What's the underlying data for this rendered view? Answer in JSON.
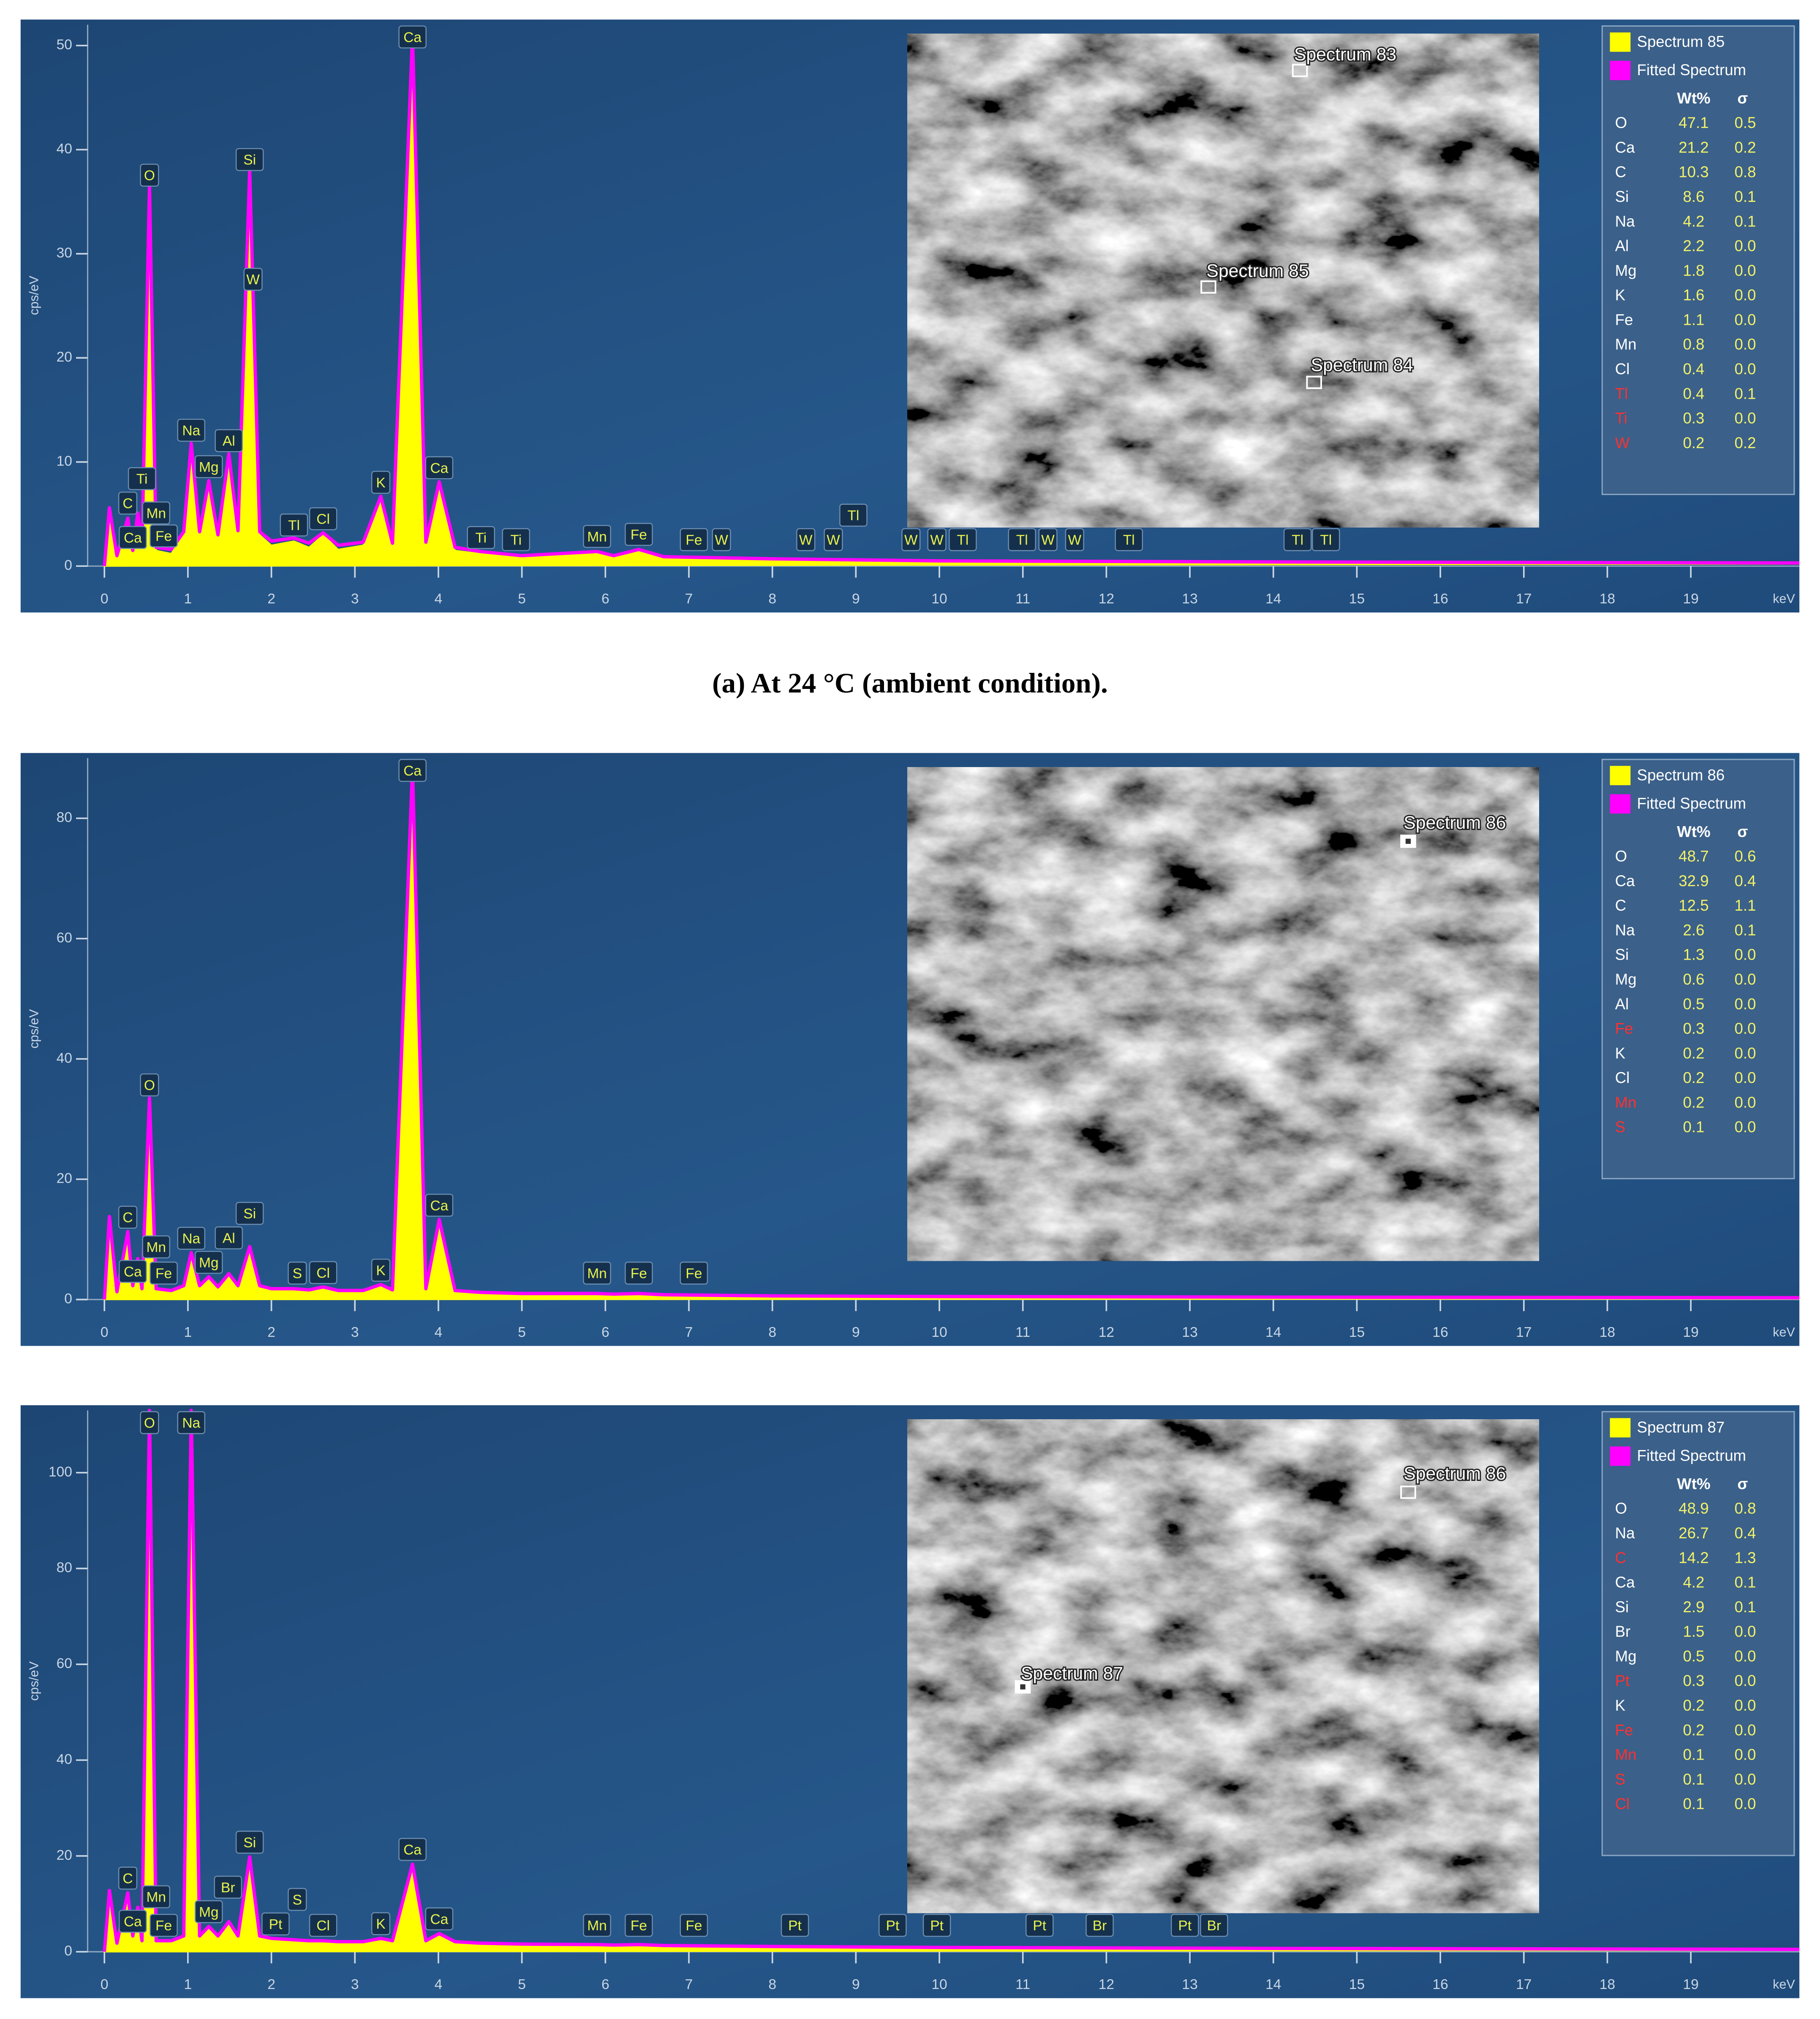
{
  "caption": "(a) At 24 °C (ambient condition).",
  "chart_data": [
    {
      "type": "line",
      "xlabel": "keV",
      "ylabel": "cps/eV",
      "xlim": [
        0,
        20.3
      ],
      "xticks": [
        0,
        1,
        2,
        3,
        4,
        5,
        6,
        7,
        8,
        9,
        10,
        11,
        12,
        13,
        14,
        15,
        16,
        17,
        18,
        19
      ],
      "ylim": [
        0,
        52
      ],
      "yticks": [
        0,
        10,
        20,
        30,
        40,
        50
      ],
      "grid": false,
      "x": [
        0,
        0.06,
        0.15,
        0.28,
        0.34,
        0.4,
        0.45,
        0.54,
        0.62,
        0.8,
        0.95,
        1.04,
        1.14,
        1.25,
        1.36,
        1.49,
        1.6,
        1.74,
        1.86,
        2.0,
        2.27,
        2.45,
        2.62,
        2.8,
        3.1,
        3.31,
        3.45,
        3.69,
        3.85,
        4.01,
        4.2,
        4.5,
        5.0,
        5.9,
        6.1,
        6.4,
        6.7,
        8,
        10,
        14,
        20.3
      ],
      "series": [
        {
          "name": "Spectrum 85",
          "color": "#ffff00",
          "mark": "area",
          "values": [
            0,
            5.5,
            0.8,
            4.5,
            1.2,
            5,
            1.5,
            36,
            1.5,
            1.2,
            3,
            11.5,
            3,
            8,
            2.5,
            10.5,
            3,
            37.5,
            3,
            2,
            2.4,
            1.8,
            3,
            1.6,
            2,
            6.5,
            1.8,
            51,
            2,
            7.9,
            1.5,
            1.2,
            0.8,
            1.3,
            0.8,
            1.5,
            0.7,
            0.5,
            0.4,
            0.3,
            0.2
          ]
        },
        {
          "name": "Fitted Spectrum",
          "color": "#ff00ff",
          "mark": "line",
          "values": [
            0,
            5.6,
            1,
            4.6,
            1.5,
            5.1,
            1.8,
            36.5,
            1.8,
            1.6,
            3.3,
            11.8,
            3.3,
            8.2,
            3,
            10.8,
            3.4,
            38,
            3.3,
            2.4,
            2.7,
            2.2,
            3.2,
            2,
            2.3,
            6.7,
            2.2,
            51,
            2.3,
            8.1,
            1.8,
            1.4,
            1,
            1.4,
            1,
            1.6,
            0.9,
            0.7,
            0.5,
            0.4,
            0.3
          ]
        }
      ],
      "peak_labels": [
        {
          "label": "C",
          "x": 0.28
        },
        {
          "label": "Ca",
          "x": 0.34
        },
        {
          "label": "Ti",
          "x": 0.45
        },
        {
          "label": "O",
          "x": 0.54
        },
        {
          "label": "Mn",
          "x": 0.62
        },
        {
          "label": "Fe",
          "x": 0.71
        },
        {
          "label": "Na",
          "x": 1.04
        },
        {
          "label": "Mg",
          "x": 1.25
        },
        {
          "label": "Al",
          "x": 1.49
        },
        {
          "label": "Si",
          "x": 1.74
        },
        {
          "label": "W",
          "x": 1.78
        },
        {
          "label": "Tl",
          "x": 2.27
        },
        {
          "label": "Cl",
          "x": 2.62
        },
        {
          "label": "K",
          "x": 3.31
        },
        {
          "label": "Ca",
          "x": 3.69
        },
        {
          "label": "Ca",
          "x": 4.01
        },
        {
          "label": "Ti",
          "x": 4.51
        },
        {
          "label": "Ti",
          "x": 4.93
        },
        {
          "label": "Mn",
          "x": 5.9
        },
        {
          "label": "Fe",
          "x": 6.4
        },
        {
          "label": "Fe",
          "x": 7.06
        },
        {
          "label": "W",
          "x": 7.39
        },
        {
          "label": "W",
          "x": 8.4
        },
        {
          "label": "W",
          "x": 8.73
        },
        {
          "label": "Tl",
          "x": 8.97
        },
        {
          "label": "W",
          "x": 9.66
        },
        {
          "label": "W",
          "x": 9.97
        },
        {
          "label": "Tl",
          "x": 10.28
        },
        {
          "label": "Tl",
          "x": 10.99
        },
        {
          "label": "W",
          "x": 11.3
        },
        {
          "label": "W",
          "x": 11.62
        },
        {
          "label": "Tl",
          "x": 12.27
        },
        {
          "label": "Tl",
          "x": 14.29
        },
        {
          "label": "Tl",
          "x": 14.63
        }
      ],
      "image_labels": [
        "Spectrum 83",
        "Spectrum 85",
        "Spectrum 84"
      ],
      "table": {
        "columns": [
          "Wt%",
          "σ"
        ],
        "rows": [
          {
            "element": "O",
            "wt": "47.1",
            "sigma": "0.5",
            "color": "#ffffff"
          },
          {
            "element": "Ca",
            "wt": "21.2",
            "sigma": "0.2",
            "color": "#ffffff"
          },
          {
            "element": "C",
            "wt": "10.3",
            "sigma": "0.8",
            "color": "#ffffff"
          },
          {
            "element": "Si",
            "wt": "8.6",
            "sigma": "0.1",
            "color": "#ffffff"
          },
          {
            "element": "Na",
            "wt": "4.2",
            "sigma": "0.1",
            "color": "#ffffff"
          },
          {
            "element": "Al",
            "wt": "2.2",
            "sigma": "0.0",
            "color": "#ffffff"
          },
          {
            "element": "Mg",
            "wt": "1.8",
            "sigma": "0.0",
            "color": "#ffffff"
          },
          {
            "element": "K",
            "wt": "1.6",
            "sigma": "0.0",
            "color": "#ffffff"
          },
          {
            "element": "Fe",
            "wt": "1.1",
            "sigma": "0.0",
            "color": "#ffffff"
          },
          {
            "element": "Mn",
            "wt": "0.8",
            "sigma": "0.0",
            "color": "#ffffff"
          },
          {
            "element": "Cl",
            "wt": "0.4",
            "sigma": "0.0",
            "color": "#ffffff"
          },
          {
            "element": "Tl",
            "wt": "0.4",
            "sigma": "0.1",
            "color": "#ff3030"
          },
          {
            "element": "Ti",
            "wt": "0.3",
            "sigma": "0.0",
            "color": "#ff3030"
          },
          {
            "element": "W",
            "wt": "0.2",
            "sigma": "0.2",
            "color": "#ff3030"
          }
        ]
      }
    },
    {
      "type": "line",
      "xlabel": "keV",
      "ylabel": "cps/eV",
      "xlim": [
        0,
        20.3
      ],
      "xticks": [
        0,
        1,
        2,
        3,
        4,
        5,
        6,
        7,
        8,
        9,
        10,
        11,
        12,
        13,
        14,
        15,
        16,
        17,
        18,
        19
      ],
      "ylim": [
        0,
        90
      ],
      "yticks": [
        0,
        20,
        40,
        60,
        80
      ],
      "grid": false,
      "x": [
        0,
        0.06,
        0.15,
        0.28,
        0.34,
        0.4,
        0.45,
        0.54,
        0.62,
        0.8,
        0.95,
        1.04,
        1.14,
        1.25,
        1.36,
        1.49,
        1.6,
        1.74,
        1.86,
        2.0,
        2.27,
        2.45,
        2.62,
        2.8,
        3.1,
        3.31,
        3.45,
        3.69,
        3.85,
        4.01,
        4.2,
        4.5,
        5.0,
        5.9,
        6.1,
        6.4,
        6.7,
        8,
        10,
        14,
        20.3
      ],
      "series": [
        {
          "name": "Spectrum 86",
          "color": "#ffff00",
          "mark": "area",
          "values": [
            0,
            13.5,
            1,
            11,
            2,
            6.5,
            1.5,
            33,
            1.5,
            1.2,
            2,
            7.5,
            2,
            3.5,
            1.8,
            4,
            2,
            8.5,
            2,
            1.5,
            1.5,
            1.3,
            1.8,
            1.2,
            1.2,
            2.2,
            1.3,
            88,
            1.5,
            13,
            1.2,
            0.9,
            0.7,
            0.8,
            0.6,
            0.8,
            0.5,
            0.4,
            0.3,
            0.2,
            0.1
          ]
        },
        {
          "name": "Fitted Spectrum",
          "color": "#ff00ff",
          "mark": "line",
          "values": [
            0,
            13.8,
            1.3,
            11.3,
            2.3,
            6.8,
            1.8,
            33.5,
            1.8,
            1.5,
            2.3,
            7.8,
            2.3,
            3.8,
            2.1,
            4.3,
            2.3,
            8.8,
            2.3,
            1.8,
            1.8,
            1.6,
            2.1,
            1.5,
            1.5,
            2.5,
            1.6,
            88.5,
            1.8,
            13.3,
            1.5,
            1.2,
            1,
            1,
            0.9,
            1,
            0.8,
            0.6,
            0.5,
            0.4,
            0.3
          ]
        }
      ],
      "peak_labels": [
        {
          "label": "C",
          "x": 0.28
        },
        {
          "label": "Ca",
          "x": 0.34
        },
        {
          "label": "O",
          "x": 0.54
        },
        {
          "label": "Mn",
          "x": 0.62
        },
        {
          "label": "Fe",
          "x": 0.71
        },
        {
          "label": "Na",
          "x": 1.04
        },
        {
          "label": "Mg",
          "x": 1.25
        },
        {
          "label": "Al",
          "x": 1.49
        },
        {
          "label": "Si",
          "x": 1.74
        },
        {
          "label": "S",
          "x": 2.31
        },
        {
          "label": "Cl",
          "x": 2.62
        },
        {
          "label": "K",
          "x": 3.31
        },
        {
          "label": "Ca",
          "x": 3.69
        },
        {
          "label": "Ca",
          "x": 4.01
        },
        {
          "label": "Mn",
          "x": 5.9
        },
        {
          "label": "Fe",
          "x": 6.4
        },
        {
          "label": "Fe",
          "x": 7.06
        }
      ],
      "image_labels": [
        "Spectrum 86"
      ],
      "table": {
        "columns": [
          "Wt%",
          "σ"
        ],
        "rows": [
          {
            "element": "O",
            "wt": "48.7",
            "sigma": "0.6",
            "color": "#ffffff"
          },
          {
            "element": "Ca",
            "wt": "32.9",
            "sigma": "0.4",
            "color": "#ffffff"
          },
          {
            "element": "C",
            "wt": "12.5",
            "sigma": "1.1",
            "color": "#ffffff"
          },
          {
            "element": "Na",
            "wt": "2.6",
            "sigma": "0.1",
            "color": "#ffffff"
          },
          {
            "element": "Si",
            "wt": "1.3",
            "sigma": "0.0",
            "color": "#ffffff"
          },
          {
            "element": "Mg",
            "wt": "0.6",
            "sigma": "0.0",
            "color": "#ffffff"
          },
          {
            "element": "Al",
            "wt": "0.5",
            "sigma": "0.0",
            "color": "#ffffff"
          },
          {
            "element": "Fe",
            "wt": "0.3",
            "sigma": "0.0",
            "color": "#ff3030"
          },
          {
            "element": "K",
            "wt": "0.2",
            "sigma": "0.0",
            "color": "#ffffff"
          },
          {
            "element": "Cl",
            "wt": "0.2",
            "sigma": "0.0",
            "color": "#ffffff"
          },
          {
            "element": "Mn",
            "wt": "0.2",
            "sigma": "0.0",
            "color": "#ff3030"
          },
          {
            "element": "S",
            "wt": "0.1",
            "sigma": "0.0",
            "color": "#ff3030"
          }
        ]
      }
    },
    {
      "type": "line",
      "xlabel": "keV",
      "ylabel": "cps/eV",
      "xlim": [
        0,
        20.3
      ],
      "xticks": [
        0,
        1,
        2,
        3,
        4,
        5,
        6,
        7,
        8,
        9,
        10,
        11,
        12,
        13,
        14,
        15,
        16,
        17,
        18,
        19
      ],
      "ylim": [
        0,
        113
      ],
      "yticks": [
        0,
        20,
        40,
        60,
        80,
        100
      ],
      "grid": false,
      "x": [
        0,
        0.06,
        0.15,
        0.28,
        0.34,
        0.4,
        0.45,
        0.54,
        0.62,
        0.8,
        0.95,
        1.04,
        1.14,
        1.25,
        1.36,
        1.49,
        1.6,
        1.74,
        1.86,
        2.0,
        2.27,
        2.45,
        2.62,
        2.8,
        3.1,
        3.31,
        3.45,
        3.69,
        3.85,
        4.01,
        4.2,
        4.5,
        5.0,
        5.9,
        6.1,
        6.4,
        6.7,
        8,
        10,
        14,
        20.3
      ],
      "series": [
        {
          "name": "Spectrum 87",
          "color": "#ffff00",
          "mark": "area",
          "values": [
            0,
            12.5,
            1.5,
            12,
            3,
            9,
            2,
            113,
            2,
            2,
            3,
            113,
            3,
            5,
            3,
            6,
            3,
            19.5,
            3,
            2.5,
            2.2,
            2,
            2,
            1.8,
            1.8,
            2.5,
            2,
            18,
            2,
            3.5,
            1.8,
            1.5,
            1.3,
            1.2,
            1.1,
            1.2,
            1,
            0.8,
            0.6,
            0.4,
            0.3
          ]
        },
        {
          "name": "Fitted Spectrum",
          "color": "#ff00ff",
          "mark": "line",
          "values": [
            0,
            12.8,
            1.8,
            12.3,
            3.3,
            9.3,
            2.3,
            113,
            2.3,
            2.3,
            3.3,
            113,
            3.3,
            5.3,
            3.3,
            6.3,
            3.3,
            19.8,
            3.3,
            2.8,
            2.5,
            2.3,
            2.3,
            2.1,
            2.1,
            2.8,
            2.3,
            18.3,
            2.3,
            3.8,
            2.1,
            1.8,
            1.6,
            1.5,
            1.4,
            1.5,
            1.3,
            1.1,
            0.9,
            0.7,
            0.5
          ]
        }
      ],
      "peak_labels": [
        {
          "label": "C",
          "x": 0.28
        },
        {
          "label": "Ca",
          "x": 0.34
        },
        {
          "label": "O",
          "x": 0.54
        },
        {
          "label": "Mn",
          "x": 0.62
        },
        {
          "label": "Fe",
          "x": 0.71
        },
        {
          "label": "Na",
          "x": 1.04
        },
        {
          "label": "Mg",
          "x": 1.25
        },
        {
          "label": "Br",
          "x": 1.48
        },
        {
          "label": "Si",
          "x": 1.74
        },
        {
          "label": "Pt",
          "x": 2.05
        },
        {
          "label": "S",
          "x": 2.31
        },
        {
          "label": "Cl",
          "x": 2.62
        },
        {
          "label": "K",
          "x": 3.31
        },
        {
          "label": "Ca",
          "x": 3.69
        },
        {
          "label": "Ca",
          "x": 4.01
        },
        {
          "label": "Mn",
          "x": 5.9
        },
        {
          "label": "Fe",
          "x": 6.4
        },
        {
          "label": "Fe",
          "x": 7.06
        },
        {
          "label": "Pt",
          "x": 8.27
        },
        {
          "label": "Pt",
          "x": 9.44
        },
        {
          "label": "Pt",
          "x": 9.97
        },
        {
          "label": "Pt",
          "x": 11.2
        },
        {
          "label": "Br",
          "x": 11.92
        },
        {
          "label": "Pt",
          "x": 12.94
        },
        {
          "label": "Br",
          "x": 13.29
        }
      ],
      "image_labels": [
        "Spectrum 86",
        "Spectrum 87"
      ],
      "table": {
        "columns": [
          "Wt%",
          "σ"
        ],
        "rows": [
          {
            "element": "O",
            "wt": "48.9",
            "sigma": "0.8",
            "color": "#ffffff"
          },
          {
            "element": "Na",
            "wt": "26.7",
            "sigma": "0.4",
            "color": "#ffffff"
          },
          {
            "element": "C",
            "wt": "14.2",
            "sigma": "1.3",
            "color": "#ff3030"
          },
          {
            "element": "Ca",
            "wt": "4.2",
            "sigma": "0.1",
            "color": "#ffffff"
          },
          {
            "element": "Si",
            "wt": "2.9",
            "sigma": "0.1",
            "color": "#ffffff"
          },
          {
            "element": "Br",
            "wt": "1.5",
            "sigma": "0.0",
            "color": "#ffffff"
          },
          {
            "element": "Mg",
            "wt": "0.5",
            "sigma": "0.0",
            "color": "#ffffff"
          },
          {
            "element": "Pt",
            "wt": "0.3",
            "sigma": "0.0",
            "color": "#ff3030"
          },
          {
            "element": "K",
            "wt": "0.2",
            "sigma": "0.0",
            "color": "#ffffff"
          },
          {
            "element": "Fe",
            "wt": "0.2",
            "sigma": "0.0",
            "color": "#ff3030"
          },
          {
            "element": "Mn",
            "wt": "0.1",
            "sigma": "0.0",
            "color": "#ff3030"
          },
          {
            "element": "S",
            "wt": "0.1",
            "sigma": "0.0",
            "color": "#ff3030"
          },
          {
            "element": "Cl",
            "wt": "0.1",
            "sigma": "0.0",
            "color": "#ff3030"
          }
        ]
      }
    }
  ]
}
